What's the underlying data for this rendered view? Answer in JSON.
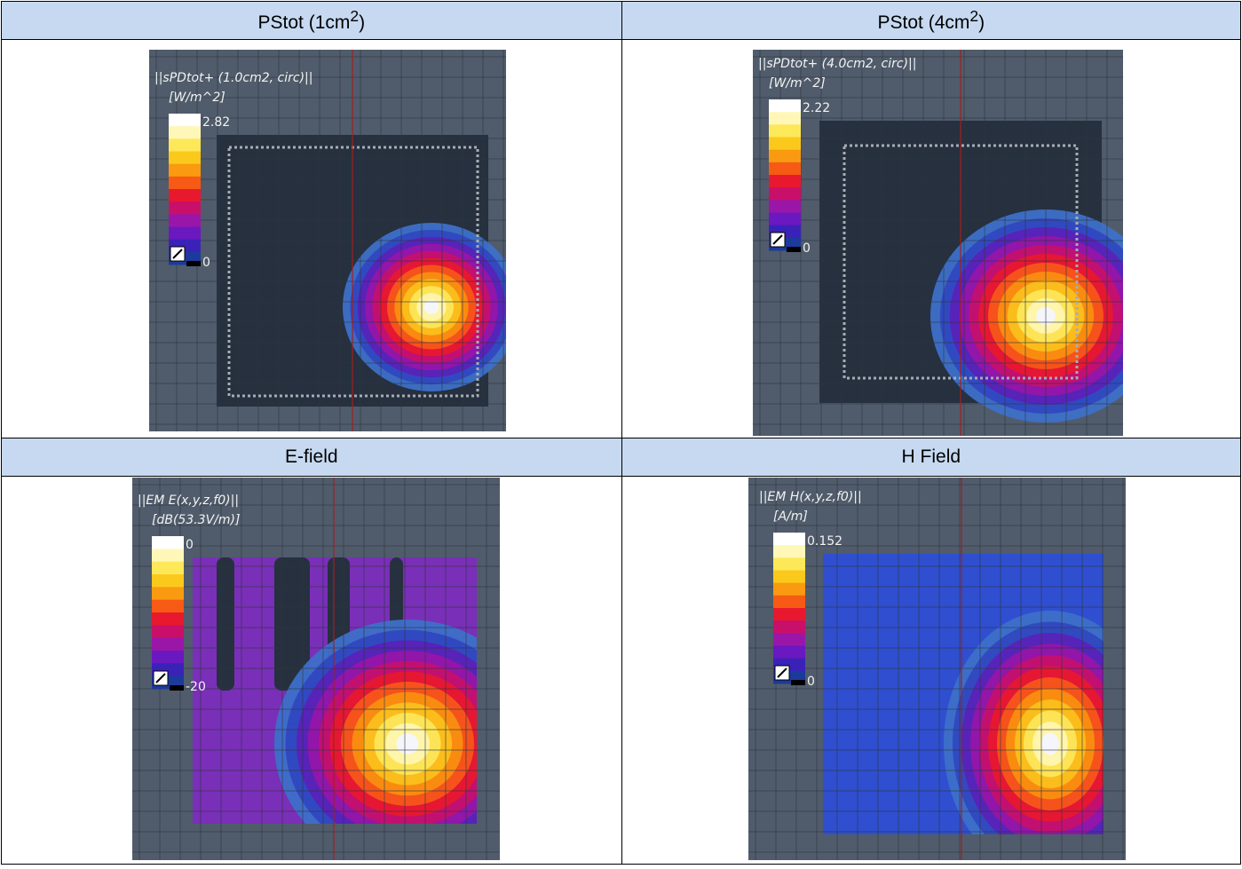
{
  "cells": [
    {
      "heading": {
        "text": "PStot (1cm",
        "sup": "2",
        "tail": ")"
      },
      "plot": {
        "quantity": "||sPDtot+ (1.0cm2, circ)||",
        "unit": "[W/m^2]",
        "max": "2.82",
        "min": "0"
      }
    },
    {
      "heading": {
        "text": "PStot (4cm",
        "sup": "2",
        "tail": ")"
      },
      "plot": {
        "quantity": "||sPDtot+ (4.0cm2, circ)||",
        "unit": "[W/m^2]",
        "max": "2.22",
        "min": "0"
      }
    },
    {
      "heading": {
        "text": "E-field"
      },
      "plot": {
        "quantity": "||EM E(x,y,z,f0)||",
        "unit": "[dB(53.3V/m)]",
        "max": "0",
        "min": "-20"
      }
    },
    {
      "heading": {
        "text": "H Field"
      },
      "plot": {
        "quantity": "||EM H(x,y,z,f0)||",
        "unit": "[A/m]",
        "max": "0.152",
        "min": "0"
      }
    }
  ]
}
